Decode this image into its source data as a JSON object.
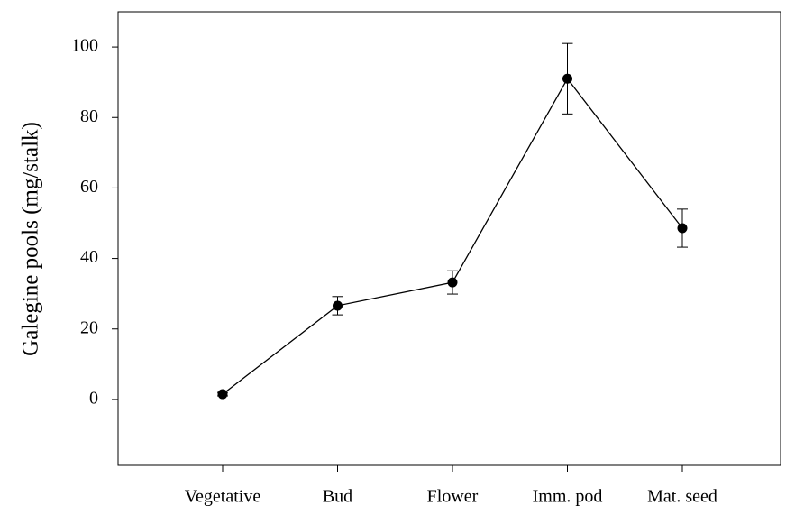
{
  "chart_data": {
    "type": "line",
    "y_label": "Galegine pools (mg/stalk)",
    "categories": [
      "Vegetative",
      "Bud",
      "Flower",
      "Imm. pod",
      "Mat. seed"
    ],
    "values": [
      1.5,
      26.6,
      33.2,
      91.0,
      48.6
    ],
    "errors": [
      0.5,
      2.6,
      3.3,
      10.0,
      5.4
    ],
    "color": "#000000",
    "ylim": [
      -18.7,
      110
    ],
    "yticks": [
      0,
      20,
      40,
      60,
      80,
      100
    ],
    "grid": false
  }
}
